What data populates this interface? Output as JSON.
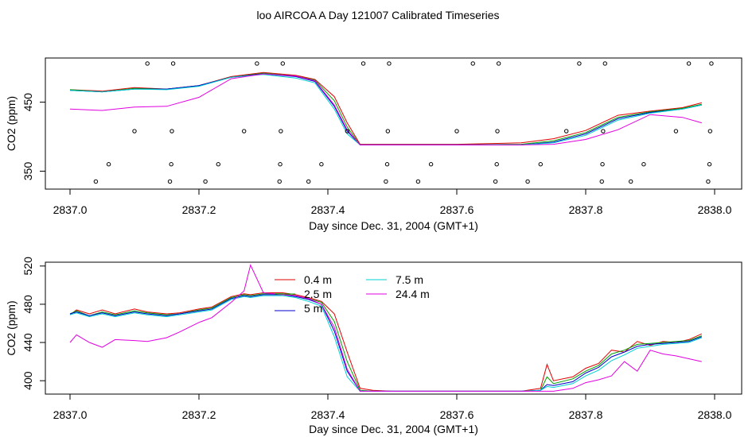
{
  "title": "loo AIRCOA A  Day 121007  Calibrated Timeseries",
  "chart_data": [
    {
      "type": "line",
      "xlabel": "Day since Dec. 31, 2004 (GMT+1)",
      "ylabel": "CO2 (ppm)",
      "xlim": [
        2837.0,
        2838.0
      ],
      "ylim": [
        324,
        514
      ],
      "xticks": [
        "2837.0",
        "2837.2",
        "2837.4",
        "2837.6",
        "2837.8",
        "2838.0"
      ],
      "yticks": [
        "350",
        "450"
      ],
      "grid": false,
      "x": [
        2837.0,
        2837.05,
        2837.1,
        2837.15,
        2837.2,
        2837.25,
        2837.3,
        2837.35,
        2837.38,
        2837.41,
        2837.43,
        2837.45,
        2837.5,
        2837.6,
        2837.7,
        2837.75,
        2837.8,
        2837.85,
        2837.9,
        2837.95,
        2837.98
      ],
      "series": [
        {
          "name": "0.4 m",
          "color": "#e00000",
          "values": [
            468,
            466,
            471,
            469,
            474,
            487,
            493,
            489,
            483,
            458,
            420,
            389,
            389,
            389,
            391,
            397,
            409,
            431,
            437,
            442,
            449
          ]
        },
        {
          "name": "2.5 m",
          "color": "#00a000",
          "values": [
            468,
            465,
            470,
            469,
            474,
            486,
            492,
            488,
            482,
            452,
            414,
            388,
            388,
            388,
            389,
            394,
            406,
            428,
            436,
            441,
            447
          ]
        },
        {
          "name": "5 m",
          "color": "#0000cc",
          "values": [
            467,
            465,
            469,
            469,
            474,
            486,
            491,
            487,
            480,
            444,
            408,
            388,
            388,
            388,
            388,
            392,
            404,
            426,
            435,
            440,
            446
          ]
        },
        {
          "name": "7.5 m",
          "color": "#00d0d0",
          "values": [
            467,
            465,
            469,
            468,
            473,
            486,
            490,
            485,
            478,
            440,
            404,
            388,
            388,
            388,
            388,
            391,
            402,
            424,
            434,
            440,
            446
          ]
        },
        {
          "name": "24.4 m",
          "color": "#e000e0",
          "values": [
            440,
            438,
            443,
            444,
            457,
            484,
            491,
            488,
            481,
            446,
            410,
            388,
            388,
            388,
            388,
            389,
            396,
            410,
            432,
            428,
            420
          ]
        }
      ],
      "status_points": [
        {
          "x": 2837.04,
          "y": 335
        },
        {
          "x": 2837.06,
          "y": 360
        },
        {
          "x": 2837.1,
          "y": 408
        },
        {
          "x": 2837.12,
          "y": 506
        },
        {
          "x": 2837.155,
          "y": 335
        },
        {
          "x": 2837.157,
          "y": 360
        },
        {
          "x": 2837.158,
          "y": 408
        },
        {
          "x": 2837.16,
          "y": 506
        },
        {
          "x": 2837.21,
          "y": 335
        },
        {
          "x": 2837.23,
          "y": 360
        },
        {
          "x": 2837.27,
          "y": 408
        },
        {
          "x": 2837.29,
          "y": 506
        },
        {
          "x": 2837.325,
          "y": 335
        },
        {
          "x": 2837.326,
          "y": 360
        },
        {
          "x": 2837.327,
          "y": 408
        },
        {
          "x": 2837.33,
          "y": 506
        },
        {
          "x": 2837.37,
          "y": 335
        },
        {
          "x": 2837.39,
          "y": 360
        },
        {
          "x": 2837.43,
          "y": 408
        },
        {
          "x": 2837.455,
          "y": 506
        },
        {
          "x": 2837.49,
          "y": 335
        },
        {
          "x": 2837.492,
          "y": 360
        },
        {
          "x": 2837.493,
          "y": 408
        },
        {
          "x": 2837.495,
          "y": 506
        },
        {
          "x": 2837.54,
          "y": 335
        },
        {
          "x": 2837.56,
          "y": 360
        },
        {
          "x": 2837.6,
          "y": 408
        },
        {
          "x": 2837.625,
          "y": 506
        },
        {
          "x": 2837.66,
          "y": 335
        },
        {
          "x": 2837.662,
          "y": 360
        },
        {
          "x": 2837.663,
          "y": 408
        },
        {
          "x": 2837.665,
          "y": 506
        },
        {
          "x": 2837.71,
          "y": 335
        },
        {
          "x": 2837.73,
          "y": 360
        },
        {
          "x": 2837.77,
          "y": 408
        },
        {
          "x": 2837.79,
          "y": 506
        },
        {
          "x": 2837.825,
          "y": 335
        },
        {
          "x": 2837.826,
          "y": 360
        },
        {
          "x": 2837.827,
          "y": 408
        },
        {
          "x": 2837.83,
          "y": 506
        },
        {
          "x": 2837.87,
          "y": 335
        },
        {
          "x": 2837.89,
          "y": 360
        },
        {
          "x": 2837.94,
          "y": 408
        },
        {
          "x": 2837.96,
          "y": 506
        },
        {
          "x": 2837.99,
          "y": 335
        },
        {
          "x": 2837.992,
          "y": 360
        },
        {
          "x": 2837.993,
          "y": 408
        },
        {
          "x": 2837.995,
          "y": 506
        }
      ]
    },
    {
      "type": "line",
      "xlabel": "Day since Dec. 31, 2004 (GMT+1)",
      "ylabel": "CO2 (ppm)",
      "xlim": [
        2837.0,
        2838.0
      ],
      "ylim": [
        386,
        524
      ],
      "xticks": [
        "2837.0",
        "2837.2",
        "2837.4",
        "2837.6",
        "2837.8",
        "2838.0"
      ],
      "yticks": [
        "400",
        "440",
        "480",
        "520"
      ],
      "grid": false,
      "legend": "inside-top-center",
      "x": [
        2837.0,
        2837.01,
        2837.03,
        2837.05,
        2837.07,
        2837.1,
        2837.12,
        2837.15,
        2837.17,
        2837.2,
        2837.22,
        2837.25,
        2837.27,
        2837.28,
        2837.3,
        2837.33,
        2837.35,
        2837.37,
        2837.39,
        2837.41,
        2837.43,
        2837.45,
        2837.47,
        2837.5,
        2837.55,
        2837.6,
        2837.65,
        2837.7,
        2837.73,
        2837.74,
        2837.75,
        2837.78,
        2837.8,
        2837.82,
        2837.84,
        2837.86,
        2837.88,
        2837.9,
        2837.92,
        2837.94,
        2837.96,
        2837.98
      ],
      "series": [
        {
          "name": "0.4 m",
          "color": "#e00000",
          "values": [
            469,
            474,
            470,
            474,
            470,
            475,
            472,
            470,
            471,
            475,
            477,
            488,
            491,
            490,
            492,
            492,
            490,
            487,
            483,
            470,
            430,
            392,
            390,
            389,
            389,
            389,
            389,
            389,
            392,
            417,
            400,
            404,
            413,
            418,
            432,
            430,
            441,
            437,
            441,
            440,
            443,
            449
          ]
        },
        {
          "name": "2.5 m",
          "color": "#00a000",
          "values": [
            470,
            473,
            468,
            472,
            469,
            473,
            471,
            469,
            470,
            474,
            476,
            487,
            490,
            489,
            491,
            491,
            489,
            486,
            482,
            462,
            420,
            390,
            389,
            389,
            389,
            389,
            389,
            389,
            390,
            404,
            397,
            402,
            410,
            416,
            428,
            432,
            438,
            439,
            440,
            441,
            442,
            447
          ]
        },
        {
          "name": "5 m",
          "color": "#0000cc",
          "values": [
            470,
            472,
            468,
            471,
            468,
            472,
            470,
            468,
            470,
            473,
            475,
            486,
            489,
            488,
            490,
            490,
            488,
            485,
            480,
            452,
            410,
            389,
            389,
            389,
            389,
            389,
            389,
            389,
            390,
            396,
            395,
            399,
            408,
            414,
            425,
            430,
            436,
            438,
            439,
            440,
            441,
            446
          ]
        },
        {
          "name": "7.5 m",
          "color": "#00d0d0",
          "values": [
            469,
            471,
            467,
            470,
            467,
            471,
            469,
            467,
            469,
            472,
            474,
            485,
            488,
            487,
            489,
            489,
            487,
            483,
            478,
            446,
            404,
            389,
            389,
            389,
            389,
            389,
            389,
            389,
            390,
            394,
            393,
            397,
            405,
            411,
            421,
            427,
            434,
            436,
            438,
            439,
            440,
            445
          ]
        },
        {
          "name": "24.4 m",
          "color": "#e000e0",
          "values": [
            440,
            448,
            440,
            435,
            443,
            442,
            441,
            445,
            451,
            461,
            466,
            482,
            494,
            521,
            492,
            490,
            489,
            486,
            480,
            456,
            412,
            389,
            389,
            389,
            389,
            389,
            389,
            389,
            389,
            389,
            389,
            392,
            398,
            401,
            405,
            420,
            410,
            432,
            428,
            426,
            423,
            420
          ]
        }
      ]
    }
  ]
}
